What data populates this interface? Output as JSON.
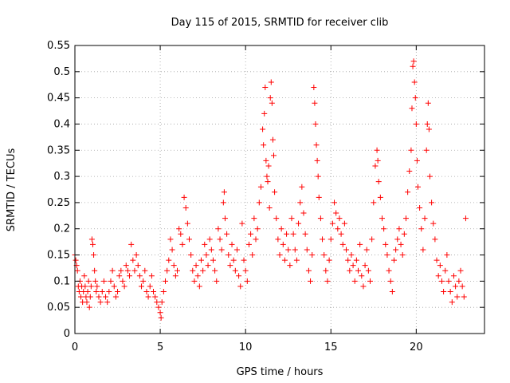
{
  "chart_data": {
    "type": "scatter",
    "title": "Day 115 of 2015, SRMTID for receiver clib",
    "xlabel": "GPS time / hours",
    "ylabel": "SRMTID / TECUs",
    "xlim": [
      0,
      24
    ],
    "ylim": [
      0,
      0.55
    ],
    "x_ticks": [
      0,
      5,
      10,
      15,
      20
    ],
    "x_tick_labels": [
      "0",
      "5",
      "10",
      "15",
      "20"
    ],
    "y_ticks": [
      0,
      0.05,
      0.1,
      0.15,
      0.2,
      0.25,
      0.3,
      0.35,
      0.4,
      0.45,
      0.5,
      0.55
    ],
    "y_tick_labels": [
      "0",
      "0.05",
      "0.1",
      "0.15",
      "0.2",
      "0.25",
      "0.3",
      "0.35",
      "0.4",
      "0.45",
      "0.5",
      "0.55"
    ],
    "grid": true,
    "marker": "+",
    "color": "#ff0000",
    "series": [
      {
        "name": "SRMTID",
        "points": [
          [
            0.0,
            0.15
          ],
          [
            0.05,
            0.14
          ],
          [
            0.1,
            0.13
          ],
          [
            0.15,
            0.12
          ],
          [
            0.2,
            0.09
          ],
          [
            0.25,
            0.08
          ],
          [
            0.3,
            0.1
          ],
          [
            0.35,
            0.07
          ],
          [
            0.4,
            0.09
          ],
          [
            0.45,
            0.06
          ],
          [
            0.5,
            0.08
          ],
          [
            0.55,
            0.11
          ],
          [
            0.6,
            0.09
          ],
          [
            0.65,
            0.07
          ],
          [
            0.7,
            0.06
          ],
          [
            0.75,
            0.08
          ],
          [
            0.8,
            0.1
          ],
          [
            0.85,
            0.05
          ],
          [
            0.9,
            0.07
          ],
          [
            0.95,
            0.09
          ],
          [
            1.0,
            0.18
          ],
          [
            1.05,
            0.17
          ],
          [
            1.1,
            0.15
          ],
          [
            1.15,
            0.12
          ],
          [
            1.2,
            0.1
          ],
          [
            1.25,
            0.08
          ],
          [
            1.3,
            0.09
          ],
          [
            1.4,
            0.07
          ],
          [
            1.5,
            0.06
          ],
          [
            1.6,
            0.08
          ],
          [
            1.7,
            0.1
          ],
          [
            1.8,
            0.07
          ],
          [
            1.9,
            0.06
          ],
          [
            2.0,
            0.08
          ],
          [
            2.1,
            0.1
          ],
          [
            2.2,
            0.12
          ],
          [
            2.3,
            0.09
          ],
          [
            2.4,
            0.07
          ],
          [
            2.5,
            0.08
          ],
          [
            2.6,
            0.11
          ],
          [
            2.7,
            0.12
          ],
          [
            2.8,
            0.1
          ],
          [
            2.9,
            0.09
          ],
          [
            3.0,
            0.13
          ],
          [
            3.1,
            0.12
          ],
          [
            3.2,
            0.11
          ],
          [
            3.3,
            0.17
          ],
          [
            3.4,
            0.14
          ],
          [
            3.5,
            0.12
          ],
          [
            3.6,
            0.15
          ],
          [
            3.7,
            0.13
          ],
          [
            3.8,
            0.11
          ],
          [
            3.9,
            0.09
          ],
          [
            4.0,
            0.1
          ],
          [
            4.1,
            0.12
          ],
          [
            4.2,
            0.08
          ],
          [
            4.3,
            0.07
          ],
          [
            4.4,
            0.09
          ],
          [
            4.5,
            0.11
          ],
          [
            4.6,
            0.08
          ],
          [
            4.7,
            0.07
          ],
          [
            4.8,
            0.06
          ],
          [
            4.9,
            0.05
          ],
          [
            5.0,
            0.04
          ],
          [
            5.05,
            0.03
          ],
          [
            5.1,
            0.06
          ],
          [
            5.2,
            0.08
          ],
          [
            5.3,
            0.1
          ],
          [
            5.4,
            0.12
          ],
          [
            5.5,
            0.14
          ],
          [
            5.6,
            0.18
          ],
          [
            5.7,
            0.16
          ],
          [
            5.8,
            0.13
          ],
          [
            5.9,
            0.11
          ],
          [
            6.0,
            0.12
          ],
          [
            6.1,
            0.2
          ],
          [
            6.2,
            0.19
          ],
          [
            6.3,
            0.17
          ],
          [
            6.4,
            0.26
          ],
          [
            6.5,
            0.24
          ],
          [
            6.6,
            0.21
          ],
          [
            6.7,
            0.18
          ],
          [
            6.8,
            0.15
          ],
          [
            6.9,
            0.12
          ],
          [
            7.0,
            0.1
          ],
          [
            7.1,
            0.13
          ],
          [
            7.2,
            0.11
          ],
          [
            7.3,
            0.09
          ],
          [
            7.4,
            0.14
          ],
          [
            7.5,
            0.12
          ],
          [
            7.6,
            0.17
          ],
          [
            7.7,
            0.15
          ],
          [
            7.8,
            0.13
          ],
          [
            7.9,
            0.18
          ],
          [
            8.0,
            0.16
          ],
          [
            8.1,
            0.14
          ],
          [
            8.2,
            0.12
          ],
          [
            8.3,
            0.1
          ],
          [
            8.4,
            0.2
          ],
          [
            8.5,
            0.18
          ],
          [
            8.6,
            0.16
          ],
          [
            8.7,
            0.25
          ],
          [
            8.75,
            0.27
          ],
          [
            8.8,
            0.22
          ],
          [
            8.9,
            0.19
          ],
          [
            9.0,
            0.15
          ],
          [
            9.1,
            0.13
          ],
          [
            9.2,
            0.17
          ],
          [
            9.3,
            0.14
          ],
          [
            9.4,
            0.12
          ],
          [
            9.5,
            0.16
          ],
          [
            9.6,
            0.11
          ],
          [
            9.7,
            0.09
          ],
          [
            9.8,
            0.21
          ],
          [
            9.9,
            0.14
          ],
          [
            10.0,
            0.12
          ],
          [
            10.1,
            0.1
          ],
          [
            10.2,
            0.17
          ],
          [
            10.3,
            0.19
          ],
          [
            10.4,
            0.15
          ],
          [
            10.5,
            0.22
          ],
          [
            10.6,
            0.18
          ],
          [
            10.7,
            0.2
          ],
          [
            10.8,
            0.25
          ],
          [
            10.9,
            0.28
          ],
          [
            11.0,
            0.39
          ],
          [
            11.05,
            0.36
          ],
          [
            11.1,
            0.42
          ],
          [
            11.15,
            0.47
          ],
          [
            11.2,
            0.33
          ],
          [
            11.25,
            0.3
          ],
          [
            11.3,
            0.29
          ],
          [
            11.35,
            0.32
          ],
          [
            11.4,
            0.24
          ],
          [
            11.45,
            0.45
          ],
          [
            11.5,
            0.48
          ],
          [
            11.55,
            0.44
          ],
          [
            11.6,
            0.37
          ],
          [
            11.65,
            0.34
          ],
          [
            11.7,
            0.27
          ],
          [
            11.8,
            0.22
          ],
          [
            11.9,
            0.18
          ],
          [
            12.0,
            0.15
          ],
          [
            12.1,
            0.2
          ],
          [
            12.2,
            0.17
          ],
          [
            12.3,
            0.14
          ],
          [
            12.4,
            0.19
          ],
          [
            12.5,
            0.16
          ],
          [
            12.6,
            0.13
          ],
          [
            12.7,
            0.22
          ],
          [
            12.8,
            0.19
          ],
          [
            12.9,
            0.16
          ],
          [
            13.0,
            0.14
          ],
          [
            13.1,
            0.21
          ],
          [
            13.2,
            0.25
          ],
          [
            13.3,
            0.28
          ],
          [
            13.4,
            0.23
          ],
          [
            13.5,
            0.19
          ],
          [
            13.6,
            0.16
          ],
          [
            13.7,
            0.12
          ],
          [
            13.8,
            0.1
          ],
          [
            13.9,
            0.15
          ],
          [
            14.0,
            0.47
          ],
          [
            14.05,
            0.44
          ],
          [
            14.1,
            0.4
          ],
          [
            14.15,
            0.36
          ],
          [
            14.2,
            0.33
          ],
          [
            14.25,
            0.3
          ],
          [
            14.3,
            0.26
          ],
          [
            14.4,
            0.22
          ],
          [
            14.5,
            0.18
          ],
          [
            14.6,
            0.15
          ],
          [
            14.7,
            0.12
          ],
          [
            14.8,
            0.1
          ],
          [
            14.9,
            0.14
          ],
          [
            15.0,
            0.18
          ],
          [
            15.1,
            0.21
          ],
          [
            15.2,
            0.25
          ],
          [
            15.3,
            0.23
          ],
          [
            15.4,
            0.2
          ],
          [
            15.5,
            0.22
          ],
          [
            15.6,
            0.19
          ],
          [
            15.7,
            0.17
          ],
          [
            15.8,
            0.21
          ],
          [
            15.9,
            0.16
          ],
          [
            16.0,
            0.14
          ],
          [
            16.1,
            0.12
          ],
          [
            16.2,
            0.15
          ],
          [
            16.3,
            0.13
          ],
          [
            16.4,
            0.1
          ],
          [
            16.5,
            0.14
          ],
          [
            16.6,
            0.12
          ],
          [
            16.7,
            0.17
          ],
          [
            16.8,
            0.11
          ],
          [
            16.9,
            0.09
          ],
          [
            17.0,
            0.13
          ],
          [
            17.1,
            0.16
          ],
          [
            17.2,
            0.12
          ],
          [
            17.3,
            0.1
          ],
          [
            17.4,
            0.18
          ],
          [
            17.5,
            0.25
          ],
          [
            17.6,
            0.32
          ],
          [
            17.7,
            0.35
          ],
          [
            17.75,
            0.33
          ],
          [
            17.8,
            0.29
          ],
          [
            17.9,
            0.26
          ],
          [
            18.0,
            0.22
          ],
          [
            18.1,
            0.2
          ],
          [
            18.2,
            0.17
          ],
          [
            18.3,
            0.15
          ],
          [
            18.4,
            0.12
          ],
          [
            18.5,
            0.1
          ],
          [
            18.6,
            0.08
          ],
          [
            18.7,
            0.14
          ],
          [
            18.8,
            0.16
          ],
          [
            18.9,
            0.18
          ],
          [
            19.0,
            0.2
          ],
          [
            19.1,
            0.17
          ],
          [
            19.2,
            0.15
          ],
          [
            19.3,
            0.19
          ],
          [
            19.4,
            0.22
          ],
          [
            19.5,
            0.27
          ],
          [
            19.6,
            0.31
          ],
          [
            19.7,
            0.35
          ],
          [
            19.75,
            0.43
          ],
          [
            19.8,
            0.51
          ],
          [
            19.85,
            0.52
          ],
          [
            19.9,
            0.48
          ],
          [
            19.95,
            0.45
          ],
          [
            20.0,
            0.4
          ],
          [
            20.05,
            0.33
          ],
          [
            20.1,
            0.28
          ],
          [
            20.2,
            0.24
          ],
          [
            20.3,
            0.2
          ],
          [
            20.4,
            0.16
          ],
          [
            20.5,
            0.22
          ],
          [
            20.6,
            0.35
          ],
          [
            20.65,
            0.4
          ],
          [
            20.7,
            0.44
          ],
          [
            20.75,
            0.39
          ],
          [
            20.8,
            0.3
          ],
          [
            20.9,
            0.25
          ],
          [
            21.0,
            0.21
          ],
          [
            21.1,
            0.18
          ],
          [
            21.2,
            0.14
          ],
          [
            21.3,
            0.11
          ],
          [
            21.4,
            0.13
          ],
          [
            21.5,
            0.1
          ],
          [
            21.6,
            0.08
          ],
          [
            21.7,
            0.12
          ],
          [
            21.8,
            0.15
          ],
          [
            21.9,
            0.1
          ],
          [
            22.0,
            0.08
          ],
          [
            22.1,
            0.06
          ],
          [
            22.2,
            0.11
          ],
          [
            22.3,
            0.09
          ],
          [
            22.4,
            0.07
          ],
          [
            22.5,
            0.1
          ],
          [
            22.6,
            0.12
          ],
          [
            22.7,
            0.09
          ],
          [
            22.8,
            0.07
          ],
          [
            22.9,
            0.22
          ]
        ]
      }
    ]
  }
}
